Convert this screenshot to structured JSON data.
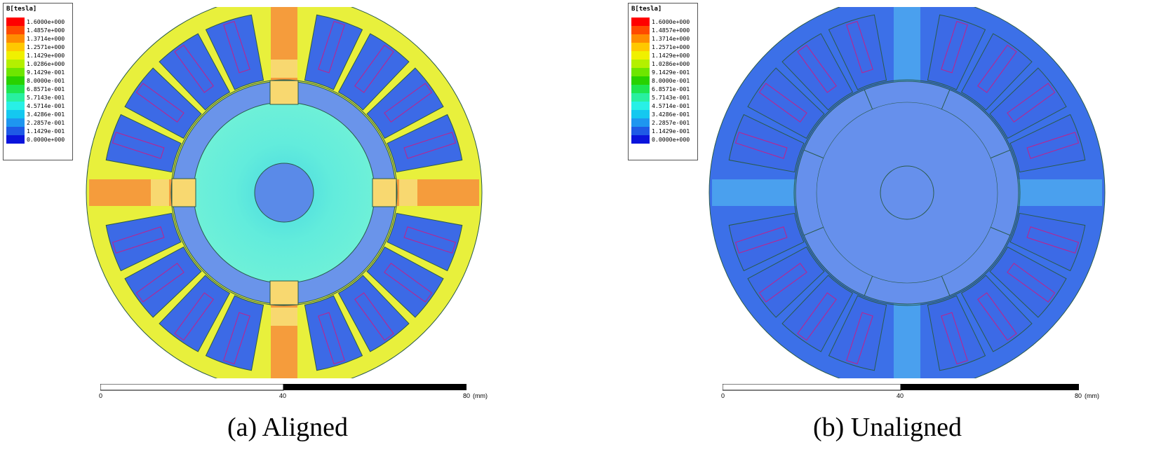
{
  "legend": {
    "title": "B[tesla]",
    "entries": [
      {
        "label": "1.6000e+000",
        "color": "#ff0000"
      },
      {
        "label": "1.4857e+000",
        "color": "#ff4a00"
      },
      {
        "label": "1.3714e+000",
        "color": "#ff8c00"
      },
      {
        "label": "1.2571e+000",
        "color": "#ffc800"
      },
      {
        "label": "1.1429e+000",
        "color": "#f0f000"
      },
      {
        "label": "1.0286e+000",
        "color": "#b4f000"
      },
      {
        "label": "9.1429e-001",
        "color": "#6ee600"
      },
      {
        "label": "8.0000e-001",
        "color": "#28d200"
      },
      {
        "label": "6.8571e-001",
        "color": "#1ee650"
      },
      {
        "label": "5.7143e-001",
        "color": "#28f0a0"
      },
      {
        "label": "4.5714e-001",
        "color": "#28f0e6"
      },
      {
        "label": "3.4286e-001",
        "color": "#14c8f0"
      },
      {
        "label": "2.2857e-001",
        "color": "#1e96f0"
      },
      {
        "label": "1.1429e-001",
        "color": "#1e5ae6"
      },
      {
        "label": "0.0000e+000",
        "color": "#0a14dc"
      }
    ]
  },
  "scale": {
    "ticks": [
      "0",
      "40",
      "80"
    ],
    "unit": "(mm)"
  },
  "panels": [
    {
      "caption": "(a) Aligned"
    },
    {
      "caption": "(b) Unaligned"
    }
  ],
  "colors": {
    "stator_yoke_aligned": "#e8f03c",
    "pole_saturated": "#f59c3c",
    "pole_tip": "#f8d870",
    "slot_blue": "#3c6ae6",
    "rotor_ring": "#6a94ea",
    "rotor_core_aligned": "#5ee8e6",
    "rotor_hub": "#5a8ae8",
    "stator_unaligned": "#3c70e8",
    "pole_unaligned": "#4aa0ee",
    "rotor_unaligned": "#6690ec",
    "coil_outline": "#c0208c",
    "edge": "#2a5a4a"
  }
}
